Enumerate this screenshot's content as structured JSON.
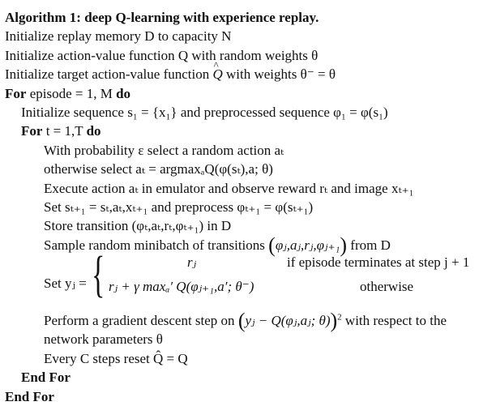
{
  "algorithm": {
    "title": "Algorithm 1: deep Q-learning with experience replay.",
    "lines": {
      "init_replay": "Initialize replay memory D to capacity N",
      "init_q": "Initialize action-value function Q with random weights θ",
      "init_target_pre": "Initialize target action-value function ",
      "init_target_q": "Q",
      "init_target_post": " with weights θ⁻ = θ",
      "for_episode_kw": "For",
      "for_episode_mid": " episode = 1, M ",
      "for_episode_do": "do",
      "init_seq": "Initialize sequence s₁ = {x₁} and preprocessed sequence φ₁ = φ(s₁)",
      "for_t_kw": "For",
      "for_t_mid": " t = 1,T ",
      "for_t_do": "do",
      "prob": "With probability ε select a random action aₜ",
      "otherwise": "otherwise select aₜ = argmaxₐQ(φ(sₜ),a; θ)",
      "execute": "Execute action aₜ in emulator and observe reward rₜ and image xₜ₊₁",
      "set_s": "Set sₜ₊₁ = sₜ,aₜ,xₜ₊₁ and preprocess φₜ₊₁ = φ(sₜ₊₁)",
      "store": "Store transition (φₜ,aₜ,rₜ,φₜ₊₁) in D",
      "sample_pre": "Sample random minibatch of transitions ",
      "sample_tuple": "φⱼ,aⱼ,rⱼ,φⱼ₊₁",
      "sample_post": " from D",
      "set_y": "Set yⱼ =",
      "case1_value": "rⱼ",
      "case1_cond": "if episode terminates at step j + 1",
      "case2_value": "rⱼ + γ maxₐ′ Q(φⱼ₊₁,a′; θ⁻)",
      "case2_cond": "otherwise",
      "gradient_pre": "Perform a gradient descent step on ",
      "gradient_expr": "yⱼ − Q(φⱼ,aⱼ; θ)",
      "gradient_sq": "2",
      "gradient_post": " with respect to the",
      "network_params": "network parameters θ",
      "every_c": "Every C steps reset Q̂ = Q",
      "end_inner": "End For",
      "end_outer": "End For"
    }
  }
}
